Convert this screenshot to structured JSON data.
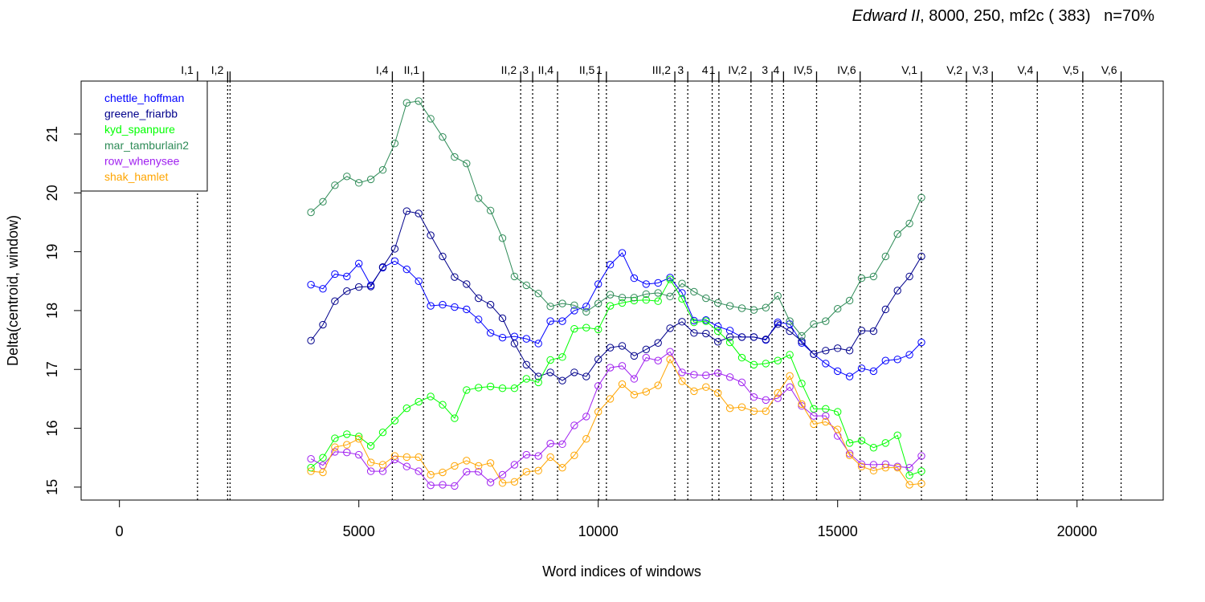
{
  "title": {
    "play": "Edward II",
    "rest": ", 8000, 250, mf2c ( 383)   n=70%"
  },
  "chart_data": {
    "type": "line",
    "xlabel": "Word indices of windows",
    "ylabel": "Delta(centroid, window)",
    "xlim": [
      -800,
      21800
    ],
    "ylim": [
      14.78,
      21.9
    ],
    "xticks": [
      0,
      5000,
      10000,
      15000,
      20000
    ],
    "yticks": [
      15,
      16,
      17,
      18,
      19,
      20,
      21
    ],
    "grid": false,
    "legend_position": "top-left",
    "x": [
      4000,
      4250,
      4500,
      4750,
      5000,
      5250,
      5500,
      5750,
      6000,
      6250,
      6500,
      6750,
      7000,
      7250,
      7500,
      7750,
      8000,
      8250,
      8500,
      8750,
      9000,
      9250,
      9500,
      9750,
      10000,
      10250,
      10500,
      10750,
      11000,
      11250,
      11500,
      11750,
      12000,
      12250,
      12500,
      12750,
      13000,
      13250,
      13500,
      13750,
      14000,
      14250,
      14500,
      14750,
      15000,
      15250,
      15500,
      15750,
      16000,
      16250,
      16500,
      16750
    ],
    "series": [
      {
        "name": "chettle_hoffman",
        "color": "#0000FF",
        "values": [
          18.44,
          18.37,
          18.62,
          18.58,
          18.8,
          18.43,
          18.73,
          18.84,
          18.7,
          18.5,
          18.08,
          18.1,
          18.06,
          18.02,
          17.85,
          17.62,
          17.54,
          17.56,
          17.52,
          17.44,
          17.82,
          17.82,
          18.0,
          18.07,
          18.45,
          18.78,
          18.98,
          18.55,
          18.45,
          18.47,
          18.56,
          18.3,
          17.83,
          17.84,
          17.73,
          17.66,
          17.55,
          17.55,
          17.5,
          17.8,
          17.77,
          17.45,
          17.26,
          17.1,
          16.97,
          16.88,
          17.02,
          16.97,
          17.15,
          17.17,
          17.25,
          17.46
        ]
      },
      {
        "name": "greene_friarbb",
        "color": "#00008B",
        "values": [
          17.49,
          17.76,
          18.16,
          18.33,
          18.4,
          18.41,
          18.74,
          19.05,
          19.69,
          19.65,
          19.28,
          18.92,
          18.57,
          18.45,
          18.21,
          18.1,
          17.87,
          17.44,
          17.08,
          16.88,
          16.95,
          16.81,
          16.95,
          16.88,
          17.17,
          17.37,
          17.4,
          17.23,
          17.34,
          17.45,
          17.7,
          17.81,
          17.62,
          17.61,
          17.47,
          17.55,
          17.55,
          17.55,
          17.51,
          17.77,
          17.65,
          17.48,
          17.26,
          17.32,
          17.36,
          17.32,
          17.66,
          17.65,
          18.02,
          18.34,
          18.58,
          18.92
        ]
      },
      {
        "name": "kyd_spanpure",
        "color": "#00FF00",
        "values": [
          15.33,
          15.5,
          15.83,
          15.9,
          15.86,
          15.7,
          15.93,
          16.13,
          16.34,
          16.45,
          16.54,
          16.4,
          16.17,
          16.65,
          16.69,
          16.71,
          16.68,
          16.68,
          16.84,
          16.78,
          17.16,
          17.21,
          17.69,
          17.71,
          17.68,
          18.08,
          18.13,
          18.17,
          18.18,
          18.16,
          18.53,
          18.2,
          17.8,
          17.82,
          17.65,
          17.46,
          17.2,
          17.08,
          17.1,
          17.15,
          17.25,
          16.76,
          16.33,
          16.33,
          16.28,
          15.75,
          15.79,
          15.67,
          15.75,
          15.88,
          15.2,
          15.27
        ]
      },
      {
        "name": "mar_tamburlain2",
        "color": "#2E8B57",
        "values": [
          19.67,
          19.85,
          20.13,
          20.28,
          20.17,
          20.23,
          20.39,
          20.84,
          21.53,
          21.56,
          21.26,
          20.95,
          20.61,
          20.5,
          19.91,
          19.7,
          19.23,
          18.58,
          18.43,
          18.29,
          18.07,
          18.12,
          18.09,
          17.98,
          18.12,
          18.27,
          18.22,
          18.22,
          18.28,
          18.3,
          18.24,
          18.46,
          18.32,
          18.21,
          18.13,
          18.08,
          18.04,
          18.01,
          18.05,
          18.25,
          17.82,
          17.57,
          17.77,
          17.82,
          18.03,
          18.17,
          18.55,
          18.58,
          18.92,
          19.3,
          19.48,
          19.92
        ]
      },
      {
        "name": "row_whenysee",
        "color": "#A020F0",
        "values": [
          15.48,
          15.37,
          15.6,
          15.59,
          15.55,
          15.27,
          15.27,
          15.47,
          15.35,
          15.27,
          15.03,
          15.04,
          15.02,
          15.26,
          15.26,
          15.08,
          15.21,
          15.38,
          15.55,
          15.53,
          15.74,
          15.73,
          16.05,
          16.2,
          16.72,
          17.03,
          17.06,
          16.84,
          17.2,
          17.15,
          17.3,
          16.95,
          16.91,
          16.9,
          16.94,
          16.87,
          16.78,
          16.53,
          16.48,
          16.51,
          16.7,
          16.38,
          16.21,
          16.21,
          15.87,
          15.57,
          15.39,
          15.38,
          15.39,
          15.35,
          15.33,
          15.53
        ]
      },
      {
        "name": "shak_hamlet",
        "color": "#FFA500",
        "values": [
          15.27,
          15.25,
          15.68,
          15.72,
          15.82,
          15.42,
          15.38,
          15.53,
          15.51,
          15.51,
          15.21,
          15.25,
          15.36,
          15.45,
          15.36,
          15.41,
          15.07,
          15.09,
          15.26,
          15.28,
          15.51,
          15.33,
          15.54,
          15.82,
          16.28,
          16.5,
          16.75,
          16.57,
          16.62,
          16.73,
          17.17,
          16.8,
          16.63,
          16.7,
          16.6,
          16.34,
          16.36,
          16.29,
          16.29,
          16.6,
          16.89,
          16.41,
          16.07,
          16.11,
          15.98,
          15.54,
          15.35,
          15.28,
          15.33,
          15.33,
          15.04,
          15.06
        ]
      }
    ],
    "act_boundaries": [
      {
        "x": 1630,
        "label": "I,1"
      },
      {
        "x": 2260,
        "label": "I,2"
      },
      {
        "x": 2310,
        "label": ""
      },
      {
        "x": 5700,
        "label": "I,4"
      },
      {
        "x": 6350,
        "label": "II,1"
      },
      {
        "x": 8380,
        "label": "II,2"
      },
      {
        "x": 8630,
        "label": "3"
      },
      {
        "x": 9150,
        "label": "II,4"
      },
      {
        "x": 10010,
        "label": "II,5"
      },
      {
        "x": 10170,
        "label": "1"
      },
      {
        "x": 11600,
        "label": "III,2"
      },
      {
        "x": 11870,
        "label": "3"
      },
      {
        "x": 12380,
        "label": "4"
      },
      {
        "x": 12520,
        "label": "1"
      },
      {
        "x": 13190,
        "label": "IV,2"
      },
      {
        "x": 13630,
        "label": "3"
      },
      {
        "x": 13870,
        "label": "4"
      },
      {
        "x": 14560,
        "label": "IV,5"
      },
      {
        "x": 15470,
        "label": "IV,6"
      },
      {
        "x": 16750,
        "label": "V,1"
      },
      {
        "x": 17690,
        "label": "V,2"
      },
      {
        "x": 18230,
        "label": "V,3"
      },
      {
        "x": 19170,
        "label": "V,4"
      },
      {
        "x": 20120,
        "label": "V,5"
      },
      {
        "x": 20920,
        "label": "V,6"
      }
    ]
  }
}
